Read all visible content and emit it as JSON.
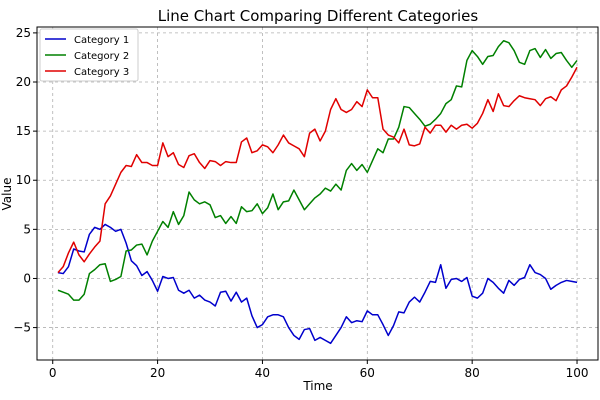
{
  "chart_data": {
    "type": "line",
    "title": "Line Chart Comparing Different Categories",
    "xlabel": "Time",
    "ylabel": "Value",
    "xlim": [
      -3,
      104
    ],
    "ylim": [
      -8.3,
      25.6
    ],
    "xticks": [
      0,
      20,
      40,
      60,
      80,
      100
    ],
    "yticks": [
      -5,
      0,
      5,
      10,
      15,
      20,
      25
    ],
    "grid": true,
    "legend_position": "top-left",
    "x": [
      1,
      2,
      3,
      4,
      5,
      6,
      7,
      8,
      9,
      10,
      11,
      12,
      13,
      14,
      15,
      16,
      17,
      18,
      19,
      20,
      21,
      22,
      23,
      24,
      25,
      26,
      27,
      28,
      29,
      30,
      31,
      32,
      33,
      34,
      35,
      36,
      37,
      38,
      39,
      40,
      41,
      42,
      43,
      44,
      45,
      46,
      47,
      48,
      49,
      50,
      51,
      52,
      53,
      54,
      55,
      56,
      57,
      58,
      59,
      60,
      61,
      62,
      63,
      64,
      65,
      66,
      67,
      68,
      69,
      70,
      71,
      72,
      73,
      74,
      75,
      76,
      77,
      78,
      79,
      80,
      81,
      82,
      83,
      84,
      85,
      86,
      87,
      88,
      89,
      90,
      91,
      92,
      93,
      94,
      95,
      96,
      97,
      98,
      99,
      100
    ],
    "series": [
      {
        "name": "Category 1",
        "color": "#0000cc",
        "values": [
          0.6,
          0.5,
          1.2,
          3.0,
          2.8,
          2.7,
          4.5,
          5.2,
          5.0,
          5.5,
          5.2,
          4.8,
          5.0,
          3.6,
          1.8,
          1.3,
          0.3,
          0.7,
          -0.2,
          -1.3,
          0.2,
          0.0,
          0.1,
          -1.2,
          -1.5,
          -1.2,
          -2.0,
          -1.7,
          -2.2,
          -2.4,
          -2.8,
          -1.4,
          -1.3,
          -2.3,
          -1.4,
          -2.4,
          -2.0,
          -3.8,
          -5.0,
          -4.7,
          -3.9,
          -3.7,
          -3.7,
          -3.9,
          -5.0,
          -5.8,
          -6.2,
          -5.2,
          -5.1,
          -6.3,
          -6.0,
          -6.3,
          -6.6,
          -5.8,
          -5.0,
          -3.9,
          -4.5,
          -4.3,
          -4.4,
          -3.3,
          -3.7,
          -3.7,
          -4.7,
          -5.8,
          -4.8,
          -3.4,
          -3.5,
          -2.4,
          -1.9,
          -2.4,
          -1.4,
          -0.3,
          -0.4,
          1.4,
          -1.0,
          -0.1,
          0.0,
          -0.3,
          0.1,
          -1.8,
          -2.0,
          -1.5,
          0.0,
          -0.4,
          -1.0,
          -1.5,
          -0.2,
          -0.7,
          -0.1,
          0.1,
          1.4,
          0.6,
          0.4,
          0.0,
          -1.1,
          -0.7,
          -0.4,
          -0.2,
          -0.3,
          -0.4
        ]
      },
      {
        "name": "Category 2",
        "color": "#008000",
        "values": [
          -1.2,
          -1.4,
          -1.6,
          -2.2,
          -2.2,
          -1.6,
          0.5,
          0.9,
          1.4,
          1.5,
          -0.3,
          -0.1,
          0.2,
          2.8,
          2.9,
          3.4,
          3.5,
          2.4,
          3.8,
          4.8,
          5.8,
          5.2,
          6.8,
          5.5,
          6.4,
          8.8,
          8.0,
          7.6,
          7.8,
          7.5,
          6.2,
          6.4,
          5.6,
          6.3,
          5.6,
          7.3,
          6.8,
          6.9,
          7.6,
          6.6,
          7.2,
          8.6,
          7.0,
          7.8,
          7.9,
          9.0,
          8.0,
          7.0,
          7.6,
          8.2,
          8.6,
          9.2,
          8.9,
          9.6,
          9.0,
          11.0,
          11.7,
          11.0,
          11.6,
          10.8,
          12.0,
          13.2,
          12.8,
          14.2,
          14.2,
          15.4,
          17.5,
          17.4,
          16.8,
          16.2,
          15.5,
          15.7,
          16.2,
          16.8,
          17.8,
          18.2,
          19.6,
          19.5,
          22.2,
          23.2,
          22.6,
          21.8,
          22.6,
          22.7,
          23.6,
          24.2,
          24.0,
          23.2,
          22.0,
          21.8,
          23.2,
          23.4,
          22.5,
          23.3,
          22.4,
          22.9,
          23.0,
          22.2,
          21.5,
          22.2
        ]
      },
      {
        "name": "Category 3",
        "color": "#e00000",
        "values": [
          0.6,
          1.2,
          2.6,
          3.7,
          2.4,
          1.7,
          2.5,
          3.2,
          3.8,
          7.6,
          8.4,
          9.6,
          10.8,
          11.5,
          11.4,
          12.6,
          11.8,
          11.8,
          11.5,
          11.5,
          13.8,
          12.4,
          12.8,
          11.6,
          11.3,
          12.5,
          12.7,
          11.8,
          11.2,
          12.0,
          11.9,
          11.5,
          11.9,
          11.8,
          11.8,
          13.9,
          14.3,
          12.8,
          13.0,
          13.6,
          13.4,
          12.8,
          13.6,
          14.6,
          13.8,
          13.5,
          13.2,
          12.4,
          14.8,
          15.2,
          14.0,
          15.0,
          17.2,
          18.3,
          17.2,
          16.9,
          17.2,
          18.0,
          17.5,
          19.2,
          18.4,
          18.4,
          15.2,
          14.6,
          14.4,
          13.8,
          15.2,
          13.6,
          13.5,
          13.7,
          15.4,
          14.8,
          15.6,
          15.6,
          14.9,
          15.6,
          15.2,
          15.6,
          15.7,
          15.3,
          15.8,
          16.8,
          18.2,
          17.0,
          18.8,
          17.6,
          17.5,
          18.1,
          18.6,
          18.4,
          18.3,
          18.2,
          17.6,
          18.3,
          18.5,
          18.1,
          19.2,
          19.6,
          20.5,
          21.5
        ]
      }
    ]
  }
}
